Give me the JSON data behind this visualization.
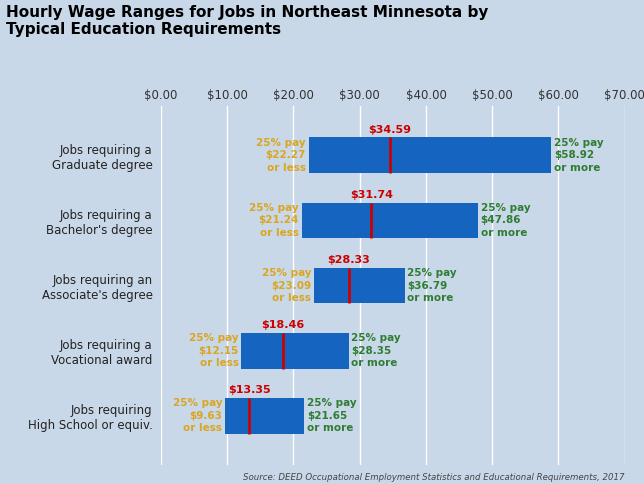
{
  "title_line1": "Hourly Wage Ranges for Jobs in Northeast Minnesota by",
  "title_line2": "Typical Education Requirements",
  "categories": [
    "Jobs requiring\nHigh School or equiv.",
    "Jobs requiring a\nVocational award",
    "Jobs requiring an\nAssociate's degree",
    "Jobs requiring a\nBachelor's degree",
    "Jobs requiring a\nGraduate degree"
  ],
  "bar_left": [
    9.63,
    12.15,
    23.09,
    21.24,
    22.27
  ],
  "bar_right": [
    21.65,
    28.35,
    36.79,
    47.86,
    58.92
  ],
  "median": [
    13.35,
    18.46,
    28.33,
    31.74,
    34.59
  ],
  "p25_labels": [
    "$9.63",
    "$12.15",
    "$23.09",
    "$21.24",
    "$22.27"
  ],
  "p75_labels": [
    "$21.65",
    "$28.35",
    "$36.79",
    "$47.86",
    "$58.92"
  ],
  "median_labels": [
    "$13.35",
    "$18.46",
    "$28.33",
    "$31.74",
    "$34.59"
  ],
  "bar_color": "#1565C0",
  "median_color": "#CC0000",
  "p25_text_color": "#DAA520",
  "p75_text_color": "#2E7D32",
  "median_text_color": "#CC0000",
  "title_color": "#000000",
  "background_color": "#C9D8E8",
  "plot_bg_color": "#C9D8E8",
  "xlim": [
    0,
    70
  ],
  "xticks": [
    0,
    10,
    20,
    30,
    40,
    50,
    60,
    70
  ],
  "xtick_labels": [
    "$0.00",
    "$10.00",
    "$20.00",
    "$30.00",
    "$40.00",
    "$50.00",
    "$60.00",
    "$70.00"
  ],
  "source_text": "Source: DEED Occupational Employment Statistics and Educational Requirements, 2017",
  "bar_height": 0.55
}
